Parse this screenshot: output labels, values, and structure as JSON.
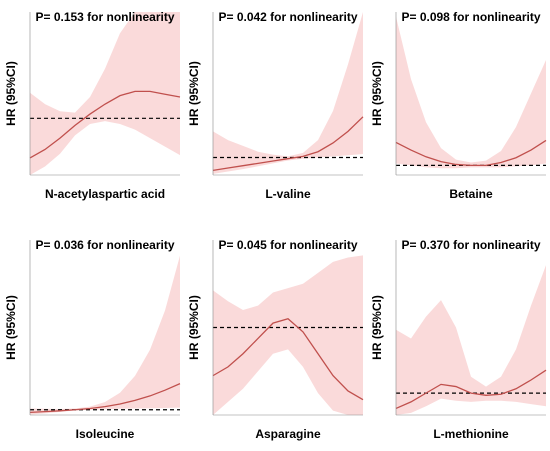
{
  "chart_data": [
    {
      "type": "line",
      "title": "P= 0.153 for nonlinearity",
      "ylabel": "HR (95%CI)",
      "xlabel": "N-acetylaspartic acid",
      "x": [
        0,
        1,
        2,
        3,
        4,
        5,
        6,
        7,
        8,
        9,
        10
      ],
      "xlim": [
        0,
        10
      ],
      "ylim": [
        0.6,
        1.75
      ],
      "reference": 1,
      "color": "#c0504d",
      "band_color": "#fadada",
      "values": [
        0.72,
        0.78,
        0.86,
        0.95,
        1.03,
        1.1,
        1.16,
        1.19,
        1.19,
        1.17,
        1.15
      ],
      "lower": [
        0.6,
        0.66,
        0.75,
        0.88,
        0.96,
        0.98,
        0.96,
        0.92,
        0.86,
        0.8,
        0.74
      ],
      "upper": [
        1.18,
        1.1,
        1.05,
        1.04,
        1.15,
        1.35,
        1.6,
        1.75,
        1.75,
        1.75,
        1.75
      ]
    },
    {
      "type": "line",
      "title": "P= 0.042 for nonlinearity",
      "ylabel": "HR (95%CI)",
      "xlabel": "L-valine",
      "x": [
        0,
        1,
        2,
        3,
        4,
        5,
        6,
        7,
        8,
        9,
        10
      ],
      "xlim": [
        0,
        10
      ],
      "ylim": [
        0.7,
        3.5
      ],
      "reference": 1,
      "color": "#c0504d",
      "band_color": "#fadada",
      "values": [
        0.78,
        0.82,
        0.86,
        0.9,
        0.94,
        0.98,
        1.02,
        1.1,
        1.25,
        1.45,
        1.7
      ],
      "lower": [
        0.72,
        0.76,
        0.8,
        0.85,
        0.9,
        0.95,
        0.98,
        1.0,
        1.02,
        1.04,
        1.06
      ],
      "upper": [
        1.45,
        1.3,
        1.2,
        1.1,
        1.05,
        1.02,
        1.08,
        1.3,
        1.8,
        2.6,
        3.5
      ]
    },
    {
      "type": "line",
      "title": "P= 0.098 for nonlinearity",
      "ylabel": "HR (95%CI)",
      "xlabel": "Betaine",
      "x": [
        0,
        1,
        2,
        3,
        4,
        5,
        6,
        7,
        8,
        9,
        10
      ],
      "xlim": [
        0,
        10
      ],
      "ylim": [
        0.9,
        2.6
      ],
      "reference": 1,
      "color": "#c0504d",
      "band_color": "#fadada",
      "values": [
        1.24,
        1.16,
        1.09,
        1.04,
        1.01,
        1.0,
        1.0,
        1.03,
        1.08,
        1.16,
        1.26
      ],
      "lower": [
        1.02,
        1.0,
        0.98,
        0.97,
        0.97,
        0.98,
        0.98,
        0.98,
        0.99,
        1.0,
        1.02
      ],
      "upper": [
        2.55,
        1.9,
        1.45,
        1.18,
        1.06,
        1.03,
        1.05,
        1.15,
        1.4,
        1.75,
        2.1
      ]
    },
    {
      "type": "line",
      "title": "P= 0.036 for nonlinearity",
      "ylabel": "HR (95%CI)",
      "xlabel": "Isoleucine",
      "x": [
        0,
        1,
        2,
        3,
        4,
        5,
        6,
        7,
        8,
        9,
        10
      ],
      "xlim": [
        0,
        10
      ],
      "ylim": [
        0.8,
        7.5
      ],
      "reference": 1,
      "color": "#c0504d",
      "band_color": "#fadada",
      "values": [
        0.9,
        0.93,
        0.96,
        1.0,
        1.05,
        1.12,
        1.22,
        1.36,
        1.53,
        1.75,
        2.0
      ],
      "lower": [
        0.82,
        0.86,
        0.92,
        0.97,
        1.0,
        1.02,
        1.04,
        1.05,
        1.06,
        1.07,
        1.08
      ],
      "upper": [
        1.05,
        1.04,
        1.03,
        1.05,
        1.12,
        1.3,
        1.65,
        2.3,
        3.3,
        4.8,
        6.9
      ]
    },
    {
      "type": "line",
      "title": "P= 0.045 for nonlinearity",
      "ylabel": "HR (95%CI)",
      "xlabel": "Asparagine",
      "x": [
        0,
        1,
        2,
        3,
        4,
        5,
        6,
        7,
        8,
        9,
        10
      ],
      "xlim": [
        0,
        10
      ],
      "ylim": [
        0.6,
        1.4
      ],
      "reference": 1,
      "color": "#c0504d",
      "band_color": "#fadada",
      "values": [
        0.78,
        0.82,
        0.88,
        0.95,
        1.02,
        1.04,
        0.98,
        0.88,
        0.78,
        0.71,
        0.67
      ],
      "lower": [
        0.6,
        0.66,
        0.72,
        0.8,
        0.88,
        0.9,
        0.82,
        0.7,
        0.62,
        0.6,
        0.6
      ],
      "upper": [
        1.17,
        1.12,
        1.08,
        1.1,
        1.16,
        1.18,
        1.2,
        1.25,
        1.3,
        1.32,
        1.33
      ]
    },
    {
      "type": "line",
      "title": "P= 0.370 for nonlinearity",
      "ylabel": "HR (95%CI)",
      "xlabel": "L-methionine",
      "x": [
        0,
        1,
        2,
        3,
        4,
        5,
        6,
        7,
        8,
        9,
        10
      ],
      "xlim": [
        0,
        10
      ],
      "ylim": [
        0.8,
        2.4
      ],
      "reference": 1,
      "color": "#c0504d",
      "band_color": "#fadada",
      "values": [
        0.86,
        0.92,
        1.0,
        1.08,
        1.06,
        1.0,
        0.98,
        0.99,
        1.04,
        1.12,
        1.21
      ],
      "lower": [
        0.8,
        0.82,
        0.88,
        0.95,
        0.93,
        0.92,
        0.93,
        0.93,
        0.92,
        0.9,
        0.88
      ],
      "upper": [
        1.58,
        1.5,
        1.7,
        1.85,
        1.6,
        1.15,
        1.06,
        1.15,
        1.4,
        1.8,
        2.17
      ]
    }
  ]
}
